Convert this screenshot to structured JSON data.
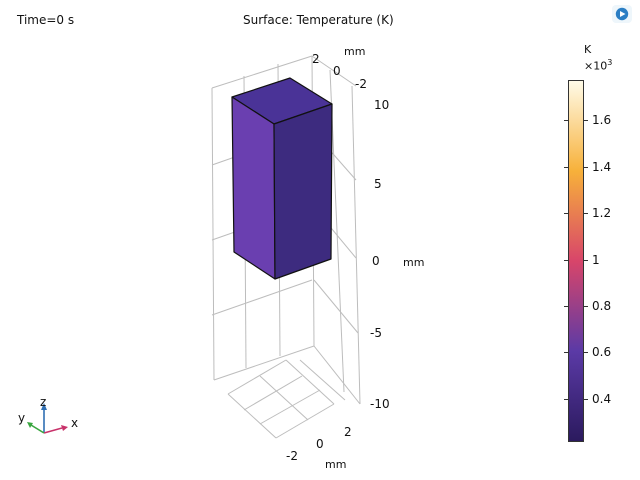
{
  "header": {
    "time_label": "Time=0 s",
    "plot_title": "Surface: Temperature (K)"
  },
  "axes": {
    "z_ticks": [
      "10",
      "5",
      "0",
      "-5",
      "-10"
    ],
    "z_unit": "mm",
    "top_ticks": [
      "2",
      "0",
      "-2"
    ],
    "top_unit": "mm",
    "bottom_ticks": [
      "2",
      "0",
      "-2"
    ],
    "bottom_unit": "mm"
  },
  "colorbar": {
    "unit": "K",
    "multiplier_base": "×10",
    "multiplier_exp": "3",
    "ticks": [
      "1.6",
      "1.4",
      "1.2",
      "1",
      "0.8",
      "0.6",
      "0.4"
    ],
    "colors": [
      "#2b1a5e",
      "#5b3aa6",
      "#d8456a",
      "#f7b13a",
      "#fffbe8"
    ]
  },
  "triad": {
    "x": "x",
    "y": "y",
    "z": "z"
  },
  "block": {
    "top_color": "#4a3397",
    "front_color": "#6a3fb0",
    "side_color": "#3d2b7f"
  }
}
